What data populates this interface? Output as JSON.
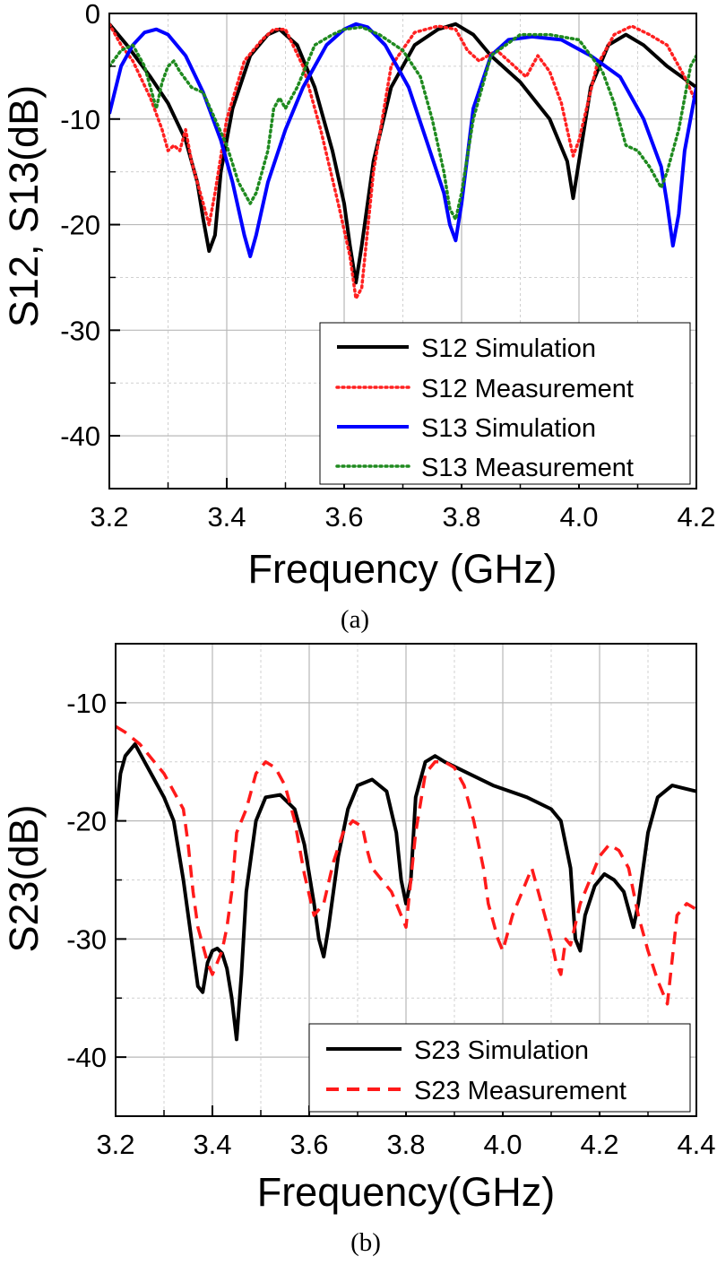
{
  "chart_data": [
    {
      "type": "line",
      "caption": "(a)",
      "xlabel": "Frequency (GHz)",
      "ylabel": "S12, S13(dB)",
      "xlim": [
        3.2,
        4.2
      ],
      "ylim": [
        -45,
        0
      ],
      "xticks": [
        3.2,
        3.4,
        3.6,
        3.8,
        4.0,
        4.2
      ],
      "xtick_labels": [
        "3.2",
        "3.4",
        "3.6",
        "3.8",
        "4.0",
        "4.2"
      ],
      "yticks": [
        0,
        -10,
        -20,
        -30,
        -40
      ],
      "ytick_labels": [
        "0",
        "-10",
        "-20",
        "-30",
        "-40"
      ],
      "grid": true,
      "legend_position": "bottom-right",
      "series": [
        {
          "name": "S12 Simulation",
          "color": "#000000",
          "dash": "solid",
          "x": [
            3.2,
            3.23,
            3.27,
            3.3,
            3.33,
            3.35,
            3.36,
            3.37,
            3.38,
            3.39,
            3.41,
            3.44,
            3.47,
            3.49,
            3.52,
            3.55,
            3.58,
            3.6,
            3.61,
            3.62,
            3.63,
            3.65,
            3.68,
            3.72,
            3.76,
            3.79,
            3.82,
            3.85,
            3.9,
            3.95,
            3.98,
            3.99,
            4.0,
            4.02,
            4.05,
            4.08,
            4.11,
            4.15,
            4.2
          ],
          "y": [
            -1,
            -3,
            -6,
            -8.5,
            -12,
            -16,
            -19.5,
            -22.5,
            -21,
            -15,
            -9,
            -4,
            -2,
            -1.5,
            -3,
            -7,
            -13,
            -18,
            -22,
            -25.5,
            -22,
            -14,
            -7,
            -3,
            -1.5,
            -1,
            -2,
            -4,
            -6.5,
            -10,
            -14,
            -17.5,
            -14,
            -7,
            -3,
            -2,
            -3,
            -5,
            -7
          ]
        },
        {
          "name": "S12 Measurement",
          "color": "#ff2020",
          "dash": "dot",
          "x": [
            3.2,
            3.22,
            3.24,
            3.27,
            3.29,
            3.3,
            3.31,
            3.32,
            3.33,
            3.34,
            3.35,
            3.36,
            3.37,
            3.38,
            3.4,
            3.43,
            3.46,
            3.48,
            3.5,
            3.53,
            3.56,
            3.59,
            3.61,
            3.62,
            3.63,
            3.65,
            3.68,
            3.72,
            3.76,
            3.79,
            3.8,
            3.81,
            3.83,
            3.86,
            3.89,
            3.91,
            3.93,
            3.95,
            3.97,
            3.98,
            3.99,
            4.0,
            4.03,
            4.06,
            4.09,
            4.12,
            4.15,
            4.18,
            4.2
          ],
          "y": [
            -1,
            -3,
            -4.5,
            -8,
            -11,
            -13,
            -12.5,
            -13,
            -11,
            -14,
            -16,
            -18,
            -20,
            -17,
            -10,
            -4.5,
            -2.5,
            -1.5,
            -1.5,
            -5,
            -11,
            -18,
            -23,
            -27,
            -26,
            -15,
            -5,
            -1.8,
            -1.2,
            -1.5,
            -2.5,
            -3.5,
            -4.5,
            -3.5,
            -5,
            -6,
            -4,
            -5.5,
            -8.5,
            -11,
            -13.5,
            -12,
            -5,
            -2,
            -1.2,
            -2,
            -3,
            -6,
            -8.5
          ]
        },
        {
          "name": "S13 Simulation",
          "color": "#0000ff",
          "dash": "solid",
          "x": [
            3.2,
            3.22,
            3.24,
            3.26,
            3.28,
            3.3,
            3.33,
            3.36,
            3.39,
            3.41,
            3.43,
            3.44,
            3.45,
            3.47,
            3.5,
            3.53,
            3.57,
            3.6,
            3.62,
            3.64,
            3.67,
            3.71,
            3.74,
            3.77,
            3.78,
            3.79,
            3.8,
            3.82,
            3.85,
            3.88,
            3.92,
            3.97,
            4.02,
            4.07,
            4.11,
            4.14,
            4.15,
            4.16,
            4.17,
            4.18,
            4.2
          ],
          "y": [
            -9.5,
            -5,
            -3,
            -1.8,
            -1.5,
            -2,
            -4,
            -7.5,
            -12,
            -16,
            -21,
            -23,
            -21,
            -16,
            -11,
            -7,
            -3,
            -1.5,
            -1,
            -1.3,
            -3,
            -7,
            -12,
            -17,
            -20,
            -21.5,
            -18,
            -9,
            -4,
            -2.5,
            -2.2,
            -2.5,
            -4,
            -6,
            -10,
            -14.5,
            -18,
            -22,
            -19,
            -13,
            -7
          ]
        },
        {
          "name": "S13 Measurement",
          "color": "#1f8a1f",
          "dash": "dot",
          "x": [
            3.2,
            3.22,
            3.24,
            3.26,
            3.28,
            3.29,
            3.3,
            3.31,
            3.32,
            3.34,
            3.36,
            3.38,
            3.4,
            3.42,
            3.44,
            3.45,
            3.47,
            3.48,
            3.49,
            3.5,
            3.52,
            3.55,
            3.58,
            3.6,
            3.63,
            3.66,
            3.7,
            3.73,
            3.75,
            3.77,
            3.78,
            3.79,
            3.8,
            3.82,
            3.85,
            3.9,
            3.95,
            4.0,
            4.02,
            4.04,
            4.06,
            4.08,
            4.1,
            4.12,
            4.14,
            4.15,
            4.17,
            4.19,
            4.2
          ],
          "y": [
            -5,
            -3.5,
            -3,
            -5,
            -9,
            -6.5,
            -5,
            -4.5,
            -5.5,
            -7,
            -7.5,
            -10,
            -12.5,
            -16,
            -18,
            -17,
            -13,
            -9,
            -8,
            -9,
            -7,
            -3,
            -2,
            -1.5,
            -1.3,
            -2,
            -3.5,
            -6,
            -10,
            -15,
            -18.5,
            -19.5,
            -17,
            -10,
            -4,
            -2,
            -2,
            -2.5,
            -4,
            -5.5,
            -8.5,
            -12.5,
            -13,
            -14.5,
            -16.5,
            -15,
            -11,
            -5,
            -4
          ]
        }
      ]
    },
    {
      "type": "line",
      "caption": "(b)",
      "xlabel": "Frequency(GHz)",
      "ylabel": "S23(dB)",
      "xlim": [
        3.2,
        4.4
      ],
      "ylim": [
        -45,
        -5
      ],
      "xticks": [
        3.2,
        3.4,
        3.6,
        3.8,
        4.0,
        4.2,
        4.4
      ],
      "xtick_labels": [
        "3.2",
        "3.4",
        "3.6",
        "3.8",
        "4.0",
        "4.2",
        "4.4"
      ],
      "yticks": [
        -10,
        -20,
        -30,
        -40
      ],
      "ytick_labels": [
        "-10",
        "-20",
        "-30",
        "-40"
      ],
      "grid": true,
      "legend_position": "bottom-right",
      "series": [
        {
          "name": "S23 Simulation",
          "color": "#000000",
          "dash": "solid",
          "x": [
            3.2,
            3.21,
            3.22,
            3.24,
            3.26,
            3.28,
            3.3,
            3.32,
            3.34,
            3.36,
            3.37,
            3.38,
            3.39,
            3.4,
            3.41,
            3.42,
            3.43,
            3.44,
            3.45,
            3.46,
            3.47,
            3.49,
            3.51,
            3.54,
            3.57,
            3.59,
            3.61,
            3.62,
            3.63,
            3.64,
            3.66,
            3.68,
            3.7,
            3.73,
            3.76,
            3.78,
            3.79,
            3.8,
            3.81,
            3.82,
            3.84,
            3.86,
            3.88,
            3.92,
            3.98,
            4.05,
            4.1,
            4.12,
            4.14,
            4.15,
            4.16,
            4.17,
            4.19,
            4.21,
            4.23,
            4.25,
            4.27,
            4.28,
            4.3,
            4.32,
            4.35,
            4.4
          ],
          "y": [
            -20,
            -16,
            -14.5,
            -13.5,
            -15,
            -16.5,
            -18,
            -20,
            -25,
            -31,
            -34,
            -34.5,
            -32,
            -31,
            -30.8,
            -31.2,
            -32.5,
            -35,
            -38.5,
            -33,
            -26,
            -20,
            -18,
            -17.8,
            -19,
            -22,
            -27,
            -30,
            -31.5,
            -29,
            -23,
            -19,
            -17,
            -16.5,
            -17.5,
            -21,
            -25,
            -27,
            -25,
            -18,
            -15,
            -14.5,
            -15,
            -15.8,
            -17,
            -18,
            -19,
            -20,
            -24,
            -30,
            -31,
            -28,
            -25.5,
            -24.5,
            -25,
            -26,
            -29,
            -27,
            -21,
            -18,
            -17,
            -17.5
          ]
        },
        {
          "name": "S23 Measurement",
          "color": "#ff1a1a",
          "dash": "dash",
          "x": [
            3.2,
            3.22,
            3.25,
            3.28,
            3.3,
            3.32,
            3.34,
            3.35,
            3.36,
            3.37,
            3.38,
            3.39,
            3.4,
            3.42,
            3.43,
            3.44,
            3.45,
            3.47,
            3.49,
            3.51,
            3.53,
            3.55,
            3.57,
            3.59,
            3.61,
            3.63,
            3.65,
            3.67,
            3.69,
            3.71,
            3.72,
            3.73,
            3.75,
            3.77,
            3.79,
            3.8,
            3.82,
            3.84,
            3.86,
            3.88,
            3.9,
            3.92,
            3.94,
            3.96,
            3.97,
            3.98,
            3.99,
            4.0,
            4.02,
            4.04,
            4.06,
            4.08,
            4.1,
            4.11,
            4.12,
            4.13,
            4.14,
            4.16,
            4.18,
            4.2,
            4.22,
            4.24,
            4.26,
            4.28,
            4.3,
            4.32,
            4.34,
            4.36,
            4.38,
            4.4
          ],
          "y": [
            -12,
            -12.5,
            -13.5,
            -15,
            -16,
            -17.5,
            -19,
            -22,
            -26,
            -29,
            -30.5,
            -32,
            -33,
            -31,
            -29,
            -26,
            -21,
            -19,
            -16,
            -15,
            -15.5,
            -17,
            -20,
            -24.5,
            -28,
            -27,
            -23.5,
            -21,
            -20,
            -20.5,
            -22.5,
            -24,
            -25,
            -26,
            -28,
            -29,
            -21,
            -16,
            -15,
            -15,
            -15.5,
            -17,
            -20,
            -24,
            -27,
            -28.5,
            -30,
            -31,
            -28,
            -26,
            -24,
            -27,
            -30,
            -32,
            -33,
            -30,
            -30.5,
            -27,
            -25,
            -23,
            -22,
            -22.5,
            -24,
            -28,
            -31,
            -33.5,
            -35.5,
            -28,
            -27,
            -27.5
          ]
        }
      ]
    }
  ]
}
